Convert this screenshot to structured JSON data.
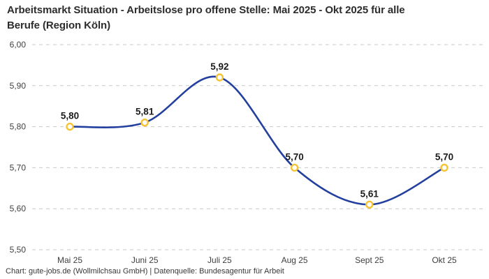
{
  "title": "Arbeitsmarkt Situation - Arbeitslose pro offene Stelle: Mai 2025 - Okt 2025 für alle\nBerufe (Region Köln)",
  "footer": "Chart: gute-jobs.de (Wollmilchsau GmbH) | Datenquelle: Bundesagentur für Arbeit",
  "colors": {
    "line": "#24409e",
    "marker_ring": "#f6c332",
    "marker_fill": "#ffffff",
    "grid": "#c9c9c9",
    "axis_text": "#3f3f3f",
    "value_label_text": "#1b1b1b"
  },
  "chart_data": {
    "type": "line",
    "title": "Arbeitsmarkt Situation - Arbeitslose pro offene Stelle: Mai 2025 - Okt 2025 für alle Berufe (Region Köln)",
    "categories": [
      "Mai 25",
      "Juni 25",
      "Juli 25",
      "Aug 25",
      "Sept 25",
      "Okt 25"
    ],
    "values": [
      5.8,
      5.81,
      5.92,
      5.7,
      5.61,
      5.7
    ],
    "value_labels": [
      "5,80",
      "5,81",
      "5,92",
      "5,70",
      "5,61",
      "5,70"
    ],
    "series_name": "Arbeitslose pro offene Stelle",
    "xlabel": "",
    "ylabel": "",
    "ylim": [
      5.5,
      6.0
    ],
    "yticks": [
      5.5,
      5.6,
      5.7,
      5.8,
      5.9,
      6.0
    ],
    "ytick_labels": [
      "5,50",
      "5,60",
      "5,70",
      "5,80",
      "5,90",
      "6,00"
    ],
    "grid": "horizontal-dashed",
    "legend": "none",
    "smooth": true,
    "marker": "open-circle"
  }
}
